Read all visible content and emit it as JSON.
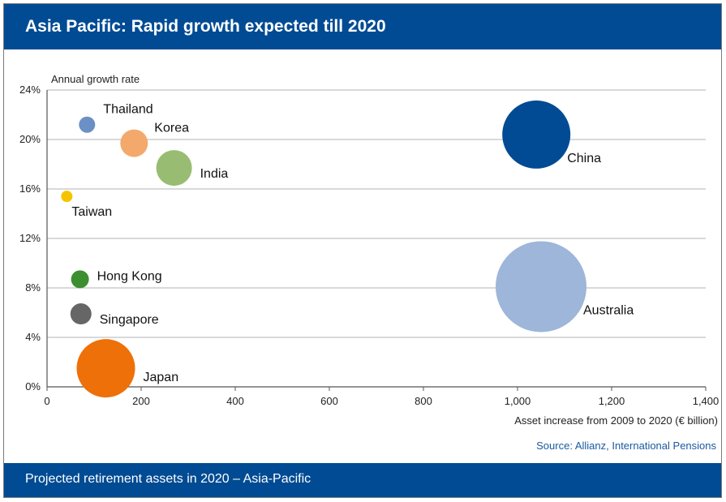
{
  "header": {
    "title": "Asia Pacific: Rapid growth expected till 2020"
  },
  "footer": {
    "caption": "Projected retirement assets in 2020 – Asia-Pacific"
  },
  "source": "Source: Allianz, International Pensions",
  "colors": {
    "header_bg": "#004b93",
    "gridline": "#9a9a9a",
    "source_text": "#1a5aa0"
  },
  "chart_data": {
    "type": "scatter",
    "subtype": "bubble",
    "title": "Asia Pacific: Rapid growth expected till 2020",
    "ylabel": "Annual growth rate",
    "xlabel": "Asset increase from 2009 to 2020 (€ billion)",
    "xlim": [
      0,
      1400
    ],
    "ylim": [
      0,
      24
    ],
    "x_ticks": [
      0,
      200,
      400,
      600,
      800,
      1000,
      1200,
      1400
    ],
    "x_tick_labels": [
      "0",
      "200",
      "400",
      "600",
      "800",
      "1,000",
      "1,200",
      "1,400"
    ],
    "y_ticks": [
      0,
      4,
      8,
      12,
      16,
      20,
      24
    ],
    "y_tick_labels": [
      "0%",
      "4%",
      "8%",
      "12%",
      "16%",
      "20%",
      "24%"
    ],
    "grid": true,
    "series": [
      {
        "name": "Thailand",
        "x": 85,
        "y": 21.2,
        "size": 0.1,
        "color": "#6b90c6"
      },
      {
        "name": "Korea",
        "x": 185,
        "y": 19.7,
        "size": 0.17,
        "color": "#f4a96c"
      },
      {
        "name": "India",
        "x": 270,
        "y": 17.7,
        "size": 0.22,
        "color": "#98bd72"
      },
      {
        "name": "Taiwan",
        "x": 42,
        "y": 15.4,
        "size": 0.07,
        "color": "#f5c400"
      },
      {
        "name": "China",
        "x": 1040,
        "y": 20.4,
        "size": 0.42,
        "color": "#004b93"
      },
      {
        "name": "Hong Kong",
        "x": 70,
        "y": 8.7,
        "size": 0.11,
        "color": "#3b8f2f"
      },
      {
        "name": "Singapore",
        "x": 72,
        "y": 5.9,
        "size": 0.13,
        "color": "#666666"
      },
      {
        "name": "Australia",
        "x": 1050,
        "y": 8.1,
        "size": 0.56,
        "color": "#9db6d9"
      },
      {
        "name": "Japan",
        "x": 125,
        "y": 1.5,
        "size": 0.36,
        "color": "#ee7008"
      }
    ]
  }
}
